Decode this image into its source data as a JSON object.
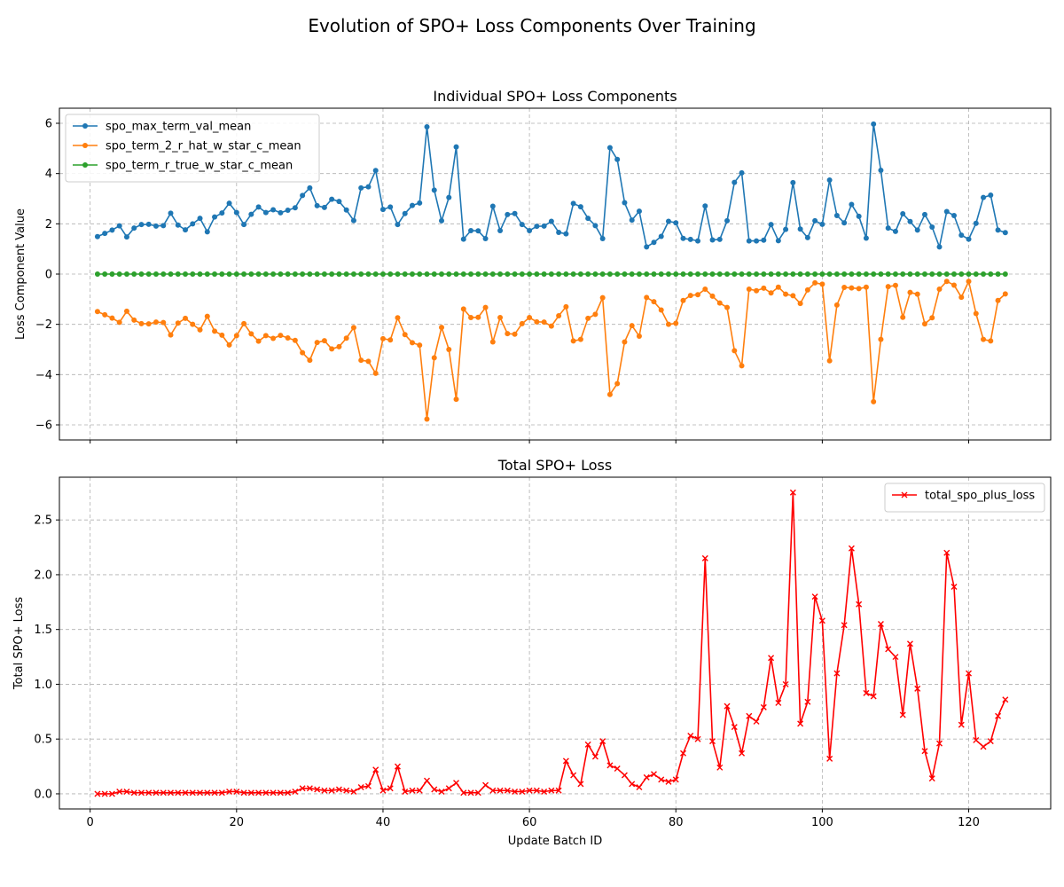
{
  "figure": {
    "title": "Evolution of SPO+ Loss Components Over Training"
  },
  "chart_data": [
    {
      "type": "line",
      "title": "Individual SPO+ Loss Components",
      "xlabel": "",
      "ylabel": "Loss Component Value",
      "xlim": [
        -4.2,
        131.2
      ],
      "ylim": [
        -6.6,
        6.6
      ],
      "xticks": [
        0,
        20,
        40,
        60,
        80,
        100,
        120
      ],
      "yticks": [
        -6,
        -4,
        -2,
        0,
        2,
        4,
        6
      ],
      "grid": true,
      "legend": "upper left",
      "series": [
        {
          "name": "spo_max_term_val_mean",
          "color": "#1f77b4",
          "marker": "circle",
          "values": [
            1.49,
            1.62,
            1.75,
            1.92,
            1.48,
            1.83,
            1.97,
            1.98,
            1.91,
            1.93,
            2.42,
            1.95,
            1.76,
            2.0,
            2.22,
            1.68,
            2.27,
            2.43,
            2.82,
            2.45,
            1.97,
            2.38,
            2.67,
            2.45,
            2.56,
            2.44,
            2.54,
            2.64,
            3.13,
            3.43,
            2.72,
            2.65,
            2.98,
            2.89,
            2.55,
            2.13,
            3.43,
            3.47,
            4.12,
            2.57,
            2.67,
            1.97,
            2.41,
            2.73,
            2.83,
            5.86,
            3.34,
            2.12,
            3.05,
            5.06,
            1.39,
            1.73,
            1.72,
            1.41,
            2.7,
            1.73,
            2.37,
            2.41,
            1.97,
            1.73,
            1.9,
            1.91,
            2.1,
            1.66,
            1.6,
            2.81,
            2.68,
            2.22,
            1.93,
            1.41,
            5.03,
            4.56,
            2.84,
            2.15,
            2.5,
            1.08,
            1.26,
            1.5,
            2.1,
            2.04,
            1.42,
            1.38,
            1.32,
            2.71,
            1.36,
            1.38,
            2.12,
            3.65,
            4.03,
            1.32,
            1.32,
            1.35,
            1.97,
            1.33,
            1.78,
            3.64,
            1.79,
            1.45,
            2.12,
            1.98,
            3.74,
            2.33,
            2.04,
            2.77,
            2.3,
            1.43,
            5.97,
            4.13,
            1.83,
            1.7,
            2.4,
            2.09,
            1.75,
            2.37,
            1.87,
            1.08,
            2.49,
            2.33,
            1.55,
            1.39,
            2.02,
            3.05,
            3.14,
            1.75,
            1.65
          ]
        },
        {
          "name": "spo_term_2_r_hat_w_star_c_mean",
          "color": "#ff7f0e",
          "marker": "circle",
          "values": [
            -1.49,
            -1.62,
            -1.75,
            -1.92,
            -1.48,
            -1.83,
            -1.97,
            -1.98,
            -1.91,
            -1.93,
            -2.42,
            -1.95,
            -1.76,
            -2.0,
            -2.22,
            -1.68,
            -2.27,
            -2.43,
            -2.82,
            -2.45,
            -1.97,
            -2.38,
            -2.67,
            -2.45,
            -2.56,
            -2.44,
            -2.54,
            -2.64,
            -3.13,
            -3.43,
            -2.72,
            -2.65,
            -2.98,
            -2.89,
            -2.55,
            -2.13,
            -3.43,
            -3.47,
            -3.95,
            -2.57,
            -2.62,
            -1.74,
            -2.41,
            -2.73,
            -2.83,
            -5.77,
            -3.33,
            -2.12,
            -3.0,
            -4.98,
            -1.39,
            -1.73,
            -1.72,
            -1.33,
            -2.7,
            -1.73,
            -2.37,
            -2.39,
            -1.97,
            -1.73,
            -1.9,
            -1.91,
            -2.07,
            -1.66,
            -1.3,
            -2.66,
            -2.6,
            -1.76,
            -1.6,
            -0.94,
            -4.79,
            -4.36,
            -2.7,
            -2.05,
            -2.47,
            -0.93,
            -1.1,
            -1.43,
            -2.0,
            -1.96,
            -1.05,
            -0.85,
            -0.82,
            -0.6,
            -0.88,
            -1.15,
            -1.33,
            -3.05,
            -3.65,
            -0.6,
            -0.66,
            -0.56,
            -0.75,
            -0.52,
            -0.8,
            -0.86,
            -1.17,
            -0.63,
            -0.35,
            -0.4,
            -3.45,
            -1.23,
            -0.53,
            -0.55,
            -0.58,
            -0.52,
            -5.08,
            -2.6,
            -0.5,
            -0.45,
            -1.72,
            -0.73,
            -0.8,
            -1.98,
            -1.74,
            -0.6,
            -0.29,
            -0.44,
            -0.92,
            -0.29,
            -1.57,
            -2.6,
            -2.66,
            -1.05,
            -0.79
          ]
        },
        {
          "name": "spo_term_r_true_w_star_c_mean",
          "color": "#2ca02c",
          "marker": "circle",
          "values": [
            0,
            0,
            0,
            0,
            0,
            0,
            0,
            0,
            0,
            0,
            0,
            0,
            0,
            0,
            0,
            0,
            0,
            0,
            0,
            0,
            0,
            0,
            0,
            0,
            0,
            0,
            0,
            0,
            0,
            0,
            0,
            0,
            0,
            0,
            0,
            0,
            0,
            0,
            0,
            0,
            0,
            0,
            0,
            0,
            0,
            0,
            0,
            0,
            0,
            0,
            0,
            0,
            0,
            0,
            0,
            0,
            0,
            0,
            0,
            0,
            0,
            0,
            0,
            0,
            0,
            0,
            0,
            0,
            0,
            0,
            0,
            0,
            0,
            0,
            0,
            0,
            0,
            0,
            0,
            0,
            0,
            0,
            0,
            0,
            0,
            0,
            0,
            0,
            0,
            0,
            0,
            0,
            0,
            0,
            0,
            0,
            0,
            0,
            0,
            0,
            0,
            0,
            0,
            0,
            0,
            0,
            0,
            0,
            0,
            0,
            0,
            0,
            0,
            0,
            0,
            0,
            0,
            0,
            0,
            0,
            0,
            0,
            0,
            0,
            0
          ]
        }
      ]
    },
    {
      "type": "line",
      "title": "Total SPO+ Loss",
      "xlabel": "Update Batch ID",
      "ylabel": "Total SPO+ Loss",
      "xlim": [
        -4.2,
        131.2
      ],
      "ylim": [
        -0.138,
        2.89
      ],
      "xticks": [
        0,
        20,
        40,
        60,
        80,
        100,
        120
      ],
      "yticks": [
        0.0,
        0.5,
        1.0,
        1.5,
        2.0,
        2.5
      ],
      "ytick_labels": [
        "0.0",
        "0.5",
        "1.0",
        "1.5",
        "2.0",
        "2.5"
      ],
      "grid": true,
      "legend": "upper right",
      "series": [
        {
          "name": "total_spo_plus_loss",
          "color": "#ff0000",
          "marker": "x",
          "values": [
            0.0,
            0.0,
            0.0,
            0.02,
            0.02,
            0.01,
            0.01,
            0.01,
            0.01,
            0.01,
            0.01,
            0.01,
            0.01,
            0.01,
            0.01,
            0.01,
            0.01,
            0.01,
            0.02,
            0.02,
            0.01,
            0.01,
            0.01,
            0.01,
            0.01,
            0.01,
            0.01,
            0.02,
            0.05,
            0.05,
            0.04,
            0.03,
            0.03,
            0.04,
            0.03,
            0.02,
            0.06,
            0.07,
            0.22,
            0.03,
            0.05,
            0.25,
            0.02,
            0.03,
            0.03,
            0.12,
            0.04,
            0.02,
            0.05,
            0.1,
            0.01,
            0.01,
            0.01,
            0.08,
            0.03,
            0.03,
            0.03,
            0.02,
            0.02,
            0.03,
            0.03,
            0.02,
            0.03,
            0.03,
            0.3,
            0.17,
            0.09,
            0.45,
            0.34,
            0.48,
            0.26,
            0.23,
            0.17,
            0.09,
            0.06,
            0.15,
            0.18,
            0.13,
            0.11,
            0.13,
            0.37,
            0.53,
            0.5,
            2.15,
            0.48,
            0.24,
            0.8,
            0.61,
            0.37,
            0.71,
            0.66,
            0.79,
            1.24,
            0.83,
            1.0,
            2.75,
            0.64,
            0.84,
            1.8,
            1.58,
            0.32,
            1.1,
            1.54,
            2.24,
            1.73,
            0.92,
            0.89,
            1.55,
            1.32,
            1.25,
            0.72,
            1.37,
            0.96,
            0.39,
            0.14,
            0.46,
            2.2,
            1.89,
            0.63,
            1.1,
            0.49,
            0.43,
            0.48,
            0.71,
            0.86
          ]
        }
      ]
    }
  ]
}
